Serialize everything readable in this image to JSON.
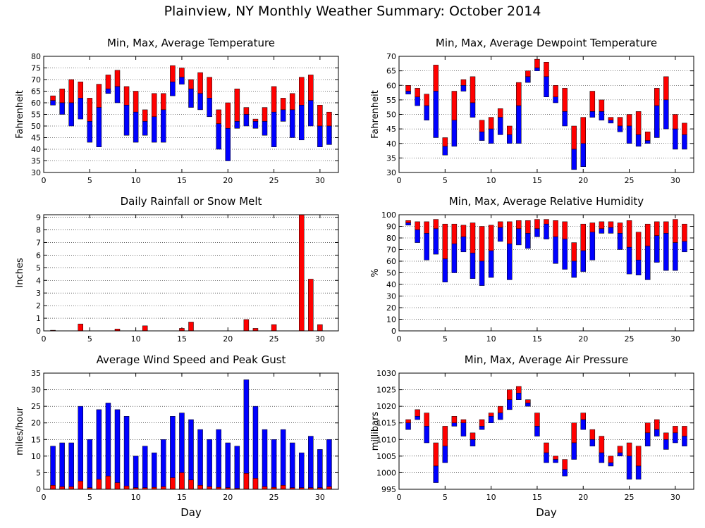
{
  "title": "Plainview, NY Monthly Weather Summary: October 2014",
  "colors": {
    "bar_max": "#ff0000",
    "bar_min": "#0000ff",
    "frame": "#000000",
    "grid": "#000000"
  },
  "chart_data": [
    {
      "id": "temperature",
      "type": "bar",
      "title": "Min, Max, Average Temperature",
      "xlabel": "",
      "ylabel": "Fahrenheit",
      "xlim": [
        0,
        32
      ],
      "ylim": [
        30,
        80
      ],
      "yticks": [
        30,
        35,
        40,
        45,
        50,
        55,
        60,
        65,
        70,
        75,
        80
      ],
      "xticks": [
        0,
        5,
        10,
        15,
        20,
        25,
        30
      ],
      "grid": true,
      "x": [
        1,
        2,
        3,
        4,
        5,
        6,
        7,
        8,
        9,
        10,
        11,
        12,
        13,
        14,
        15,
        16,
        17,
        18,
        19,
        20,
        21,
        22,
        23,
        24,
        25,
        26,
        27,
        28,
        29,
        30,
        31
      ],
      "series": [
        {
          "role": "min",
          "values": [
            59,
            55,
            50,
            53,
            43,
            41,
            64,
            60,
            46,
            43,
            46,
            43,
            43,
            63,
            68,
            58,
            57,
            54,
            40,
            35,
            49,
            50,
            49,
            46,
            41,
            52,
            45,
            44,
            50,
            41,
            42
          ]
        },
        {
          "role": "avg",
          "values": [
            61,
            60,
            60,
            62,
            52,
            58,
            66,
            67,
            59,
            56,
            52,
            54,
            57,
            69,
            71,
            66,
            64,
            62,
            51,
            49,
            52,
            55,
            52,
            52,
            56,
            57,
            57,
            59,
            61,
            50,
            50
          ]
        },
        {
          "role": "max",
          "values": [
            63,
            66,
            70,
            69,
            62,
            68,
            72,
            74,
            67,
            65,
            57,
            64,
            64,
            76,
            75,
            70,
            73,
            71,
            57,
            60,
            66,
            58,
            53,
            58,
            67,
            62,
            64,
            71,
            72,
            59,
            56
          ]
        }
      ]
    },
    {
      "id": "dewpoint",
      "type": "bar",
      "title": "Min, Max, Average Dewpoint Temperature",
      "xlabel": "",
      "ylabel": "Fahrenheit",
      "xlim": [
        0,
        32
      ],
      "ylim": [
        30,
        70
      ],
      "yticks": [
        30,
        35,
        40,
        45,
        50,
        55,
        60,
        65,
        70
      ],
      "xticks": [
        0,
        5,
        10,
        15,
        20,
        25,
        30
      ],
      "grid": true,
      "x": [
        1,
        2,
        3,
        4,
        5,
        6,
        7,
        8,
        9,
        10,
        11,
        12,
        13,
        14,
        15,
        16,
        17,
        18,
        19,
        20,
        21,
        22,
        23,
        24,
        25,
        26,
        27,
        28,
        29,
        30,
        31
      ],
      "series": [
        {
          "role": "min",
          "values": [
            57,
            53,
            48,
            42,
            36,
            39,
            58,
            49,
            41,
            40,
            43,
            40,
            40,
            61,
            65,
            56,
            54,
            46,
            31,
            32,
            49,
            48,
            47,
            44,
            40,
            39,
            40,
            42,
            45,
            38,
            38
          ]
        },
        {
          "role": "avg",
          "values": [
            58,
            56,
            53,
            58,
            39,
            48,
            60,
            54,
            44,
            45,
            49,
            43,
            53,
            63,
            66,
            63,
            56,
            51,
            38,
            40,
            51,
            51,
            48,
            46,
            46,
            43,
            41,
            53,
            55,
            45,
            43
          ]
        },
        {
          "role": "max",
          "values": [
            60,
            59,
            57,
            67,
            42,
            58,
            62,
            63,
            48,
            49,
            52,
            46,
            61,
            65,
            69,
            68,
            60,
            59,
            46,
            49,
            58,
            55,
            49,
            49,
            50,
            51,
            44,
            59,
            63,
            50,
            47
          ]
        }
      ]
    },
    {
      "id": "rainfall",
      "type": "bar",
      "title": "Daily Rainfall or Snow Melt",
      "xlabel": "",
      "ylabel": "Inches",
      "xlim": [
        0,
        32
      ],
      "ylim": [
        0,
        9.2
      ],
      "yticks": [
        0,
        1,
        2,
        3,
        4,
        5,
        6,
        7,
        8,
        9
      ],
      "xticks": [
        0,
        5,
        10,
        15,
        20,
        25,
        30
      ],
      "grid": true,
      "x": [
        1,
        2,
        3,
        4,
        5,
        6,
        7,
        8,
        9,
        10,
        11,
        12,
        13,
        14,
        15,
        16,
        17,
        18,
        19,
        20,
        21,
        22,
        23,
        24,
        25,
        26,
        27,
        28,
        29,
        30,
        31
      ],
      "series": [
        {
          "name": "",
          "values": [
            0.05,
            0,
            0,
            0.55,
            0,
            0,
            0,
            0.15,
            0,
            0,
            0.4,
            0,
            0,
            0,
            0.2,
            0.7,
            0,
            0,
            0,
            0,
            0,
            0.9,
            0.2,
            0,
            0.5,
            0,
            0,
            9.2,
            4.1,
            0.5,
            0
          ]
        }
      ]
    },
    {
      "id": "humidity",
      "type": "bar",
      "title": "Min, Max, Average Relative Humidity",
      "xlabel": "",
      "ylabel": "%",
      "xlim": [
        0,
        32
      ],
      "ylim": [
        0,
        100
      ],
      "yticks": [
        0,
        10,
        20,
        30,
        40,
        50,
        60,
        70,
        80,
        90,
        100
      ],
      "xticks": [
        0,
        5,
        10,
        15,
        20,
        25,
        30
      ],
      "grid": true,
      "x": [
        1,
        2,
        3,
        4,
        5,
        6,
        7,
        8,
        9,
        10,
        11,
        12,
        13,
        14,
        15,
        16,
        17,
        18,
        19,
        20,
        21,
        22,
        23,
        24,
        25,
        26,
        27,
        28,
        29,
        30,
        31
      ],
      "series": [
        {
          "role": "min",
          "values": [
            91,
            76,
            61,
            66,
            42,
            50,
            68,
            45,
            39,
            46,
            77,
            44,
            74,
            71,
            81,
            79,
            58,
            53,
            46,
            51,
            61,
            84,
            84,
            70,
            49,
            48,
            44,
            59,
            52,
            52,
            68
          ]
        },
        {
          "role": "avg",
          "values": [
            93,
            87,
            84,
            88,
            62,
            75,
            81,
            67,
            60,
            69,
            89,
            75,
            88,
            84,
            88,
            92,
            81,
            79,
            60,
            69,
            85,
            88,
            89,
            84,
            72,
            61,
            73,
            82,
            84,
            76,
            77
          ]
        },
        {
          "role": "max",
          "values": [
            95,
            94,
            94,
            96,
            92,
            92,
            91,
            93,
            90,
            91,
            94,
            94,
            95,
            95,
            96,
            96,
            95,
            94,
            76,
            92,
            93,
            94,
            94,
            93,
            95,
            85,
            92,
            94,
            94,
            96,
            92
          ]
        }
      ]
    },
    {
      "id": "wind",
      "type": "bar",
      "title": "Average Wind Speed and Peak Gust",
      "xlabel": "Day",
      "ylabel": "miles/hour",
      "xlim": [
        0,
        32
      ],
      "ylim": [
        0,
        35
      ],
      "yticks": [
        0,
        5,
        10,
        15,
        20,
        25,
        30,
        35
      ],
      "xticks": [
        0,
        5,
        10,
        15,
        20,
        25,
        30
      ],
      "grid": true,
      "x": [
        1,
        2,
        3,
        4,
        5,
        6,
        7,
        8,
        9,
        10,
        11,
        12,
        13,
        14,
        15,
        16,
        17,
        18,
        19,
        20,
        21,
        22,
        23,
        24,
        25,
        26,
        27,
        28,
        29,
        30,
        31
      ],
      "series": [
        {
          "role": "avg",
          "values": [
            1.2,
            0.8,
            0.8,
            2.5,
            0.5,
            3,
            4,
            2,
            1,
            0.5,
            0.5,
            0.6,
            0.8,
            3.5,
            5,
            2.8,
            1.2,
            0.8,
            0.6,
            0.5,
            0.3,
            4.8,
            3.3,
            0.8,
            0.6,
            1.2,
            0.5,
            0.5,
            0.5,
            0.5,
            0.8
          ]
        },
        {
          "role": "gust",
          "values": [
            13,
            14,
            14,
            25,
            15,
            24,
            26,
            24,
            22,
            10,
            13,
            11,
            15,
            22,
            23,
            21,
            18,
            15,
            18,
            14,
            13,
            33,
            25,
            18,
            15,
            18,
            14,
            11,
            16,
            12,
            15
          ]
        }
      ]
    },
    {
      "id": "pressure",
      "type": "bar",
      "title": "Min, Max, Average Air Pressure",
      "xlabel": "Day",
      "ylabel": "millibars",
      "xlim": [
        0,
        32
      ],
      "ylim": [
        995,
        1030
      ],
      "yticks": [
        995,
        1000,
        1005,
        1010,
        1015,
        1020,
        1025,
        1030
      ],
      "xticks": [
        0,
        5,
        10,
        15,
        20,
        25,
        30
      ],
      "grid": true,
      "x": [
        1,
        2,
        3,
        4,
        5,
        6,
        7,
        8,
        9,
        10,
        11,
        12,
        13,
        14,
        15,
        16,
        17,
        18,
        19,
        20,
        21,
        22,
        23,
        24,
        25,
        26,
        27,
        28,
        29,
        30,
        31
      ],
      "series": [
        {
          "role": "min",
          "values": [
            1013,
            1016,
            1009,
            997,
            1003,
            1014,
            1011,
            1008,
            1013,
            1015,
            1016,
            1019,
            1022,
            1020,
            1011,
            1003,
            1003,
            999,
            1004,
            1013,
            1008,
            1003,
            1002,
            1005,
            998,
            998,
            1008,
            1011,
            1007,
            1009,
            1008
          ]
        },
        {
          "role": "avg",
          "values": [
            1015,
            1017,
            1014,
            1002,
            1008,
            1015,
            1015,
            1010,
            1014,
            1017,
            1018,
            1022,
            1024,
            1021,
            1014,
            1006,
            1004,
            1001,
            1009,
            1016,
            1010,
            1006,
            1003,
            1006,
            1005,
            1002,
            1012,
            1013,
            1010,
            1012,
            1011
          ]
        },
        {
          "role": "max",
          "values": [
            1016,
            1019,
            1018,
            1009,
            1014,
            1017,
            1016,
            1012,
            1016,
            1018,
            1020,
            1025,
            1026,
            1022,
            1018,
            1009,
            1005,
            1004,
            1015,
            1018,
            1013,
            1011,
            1005,
            1008,
            1009,
            1008,
            1015,
            1016,
            1012,
            1014,
            1014
          ]
        }
      ]
    }
  ]
}
